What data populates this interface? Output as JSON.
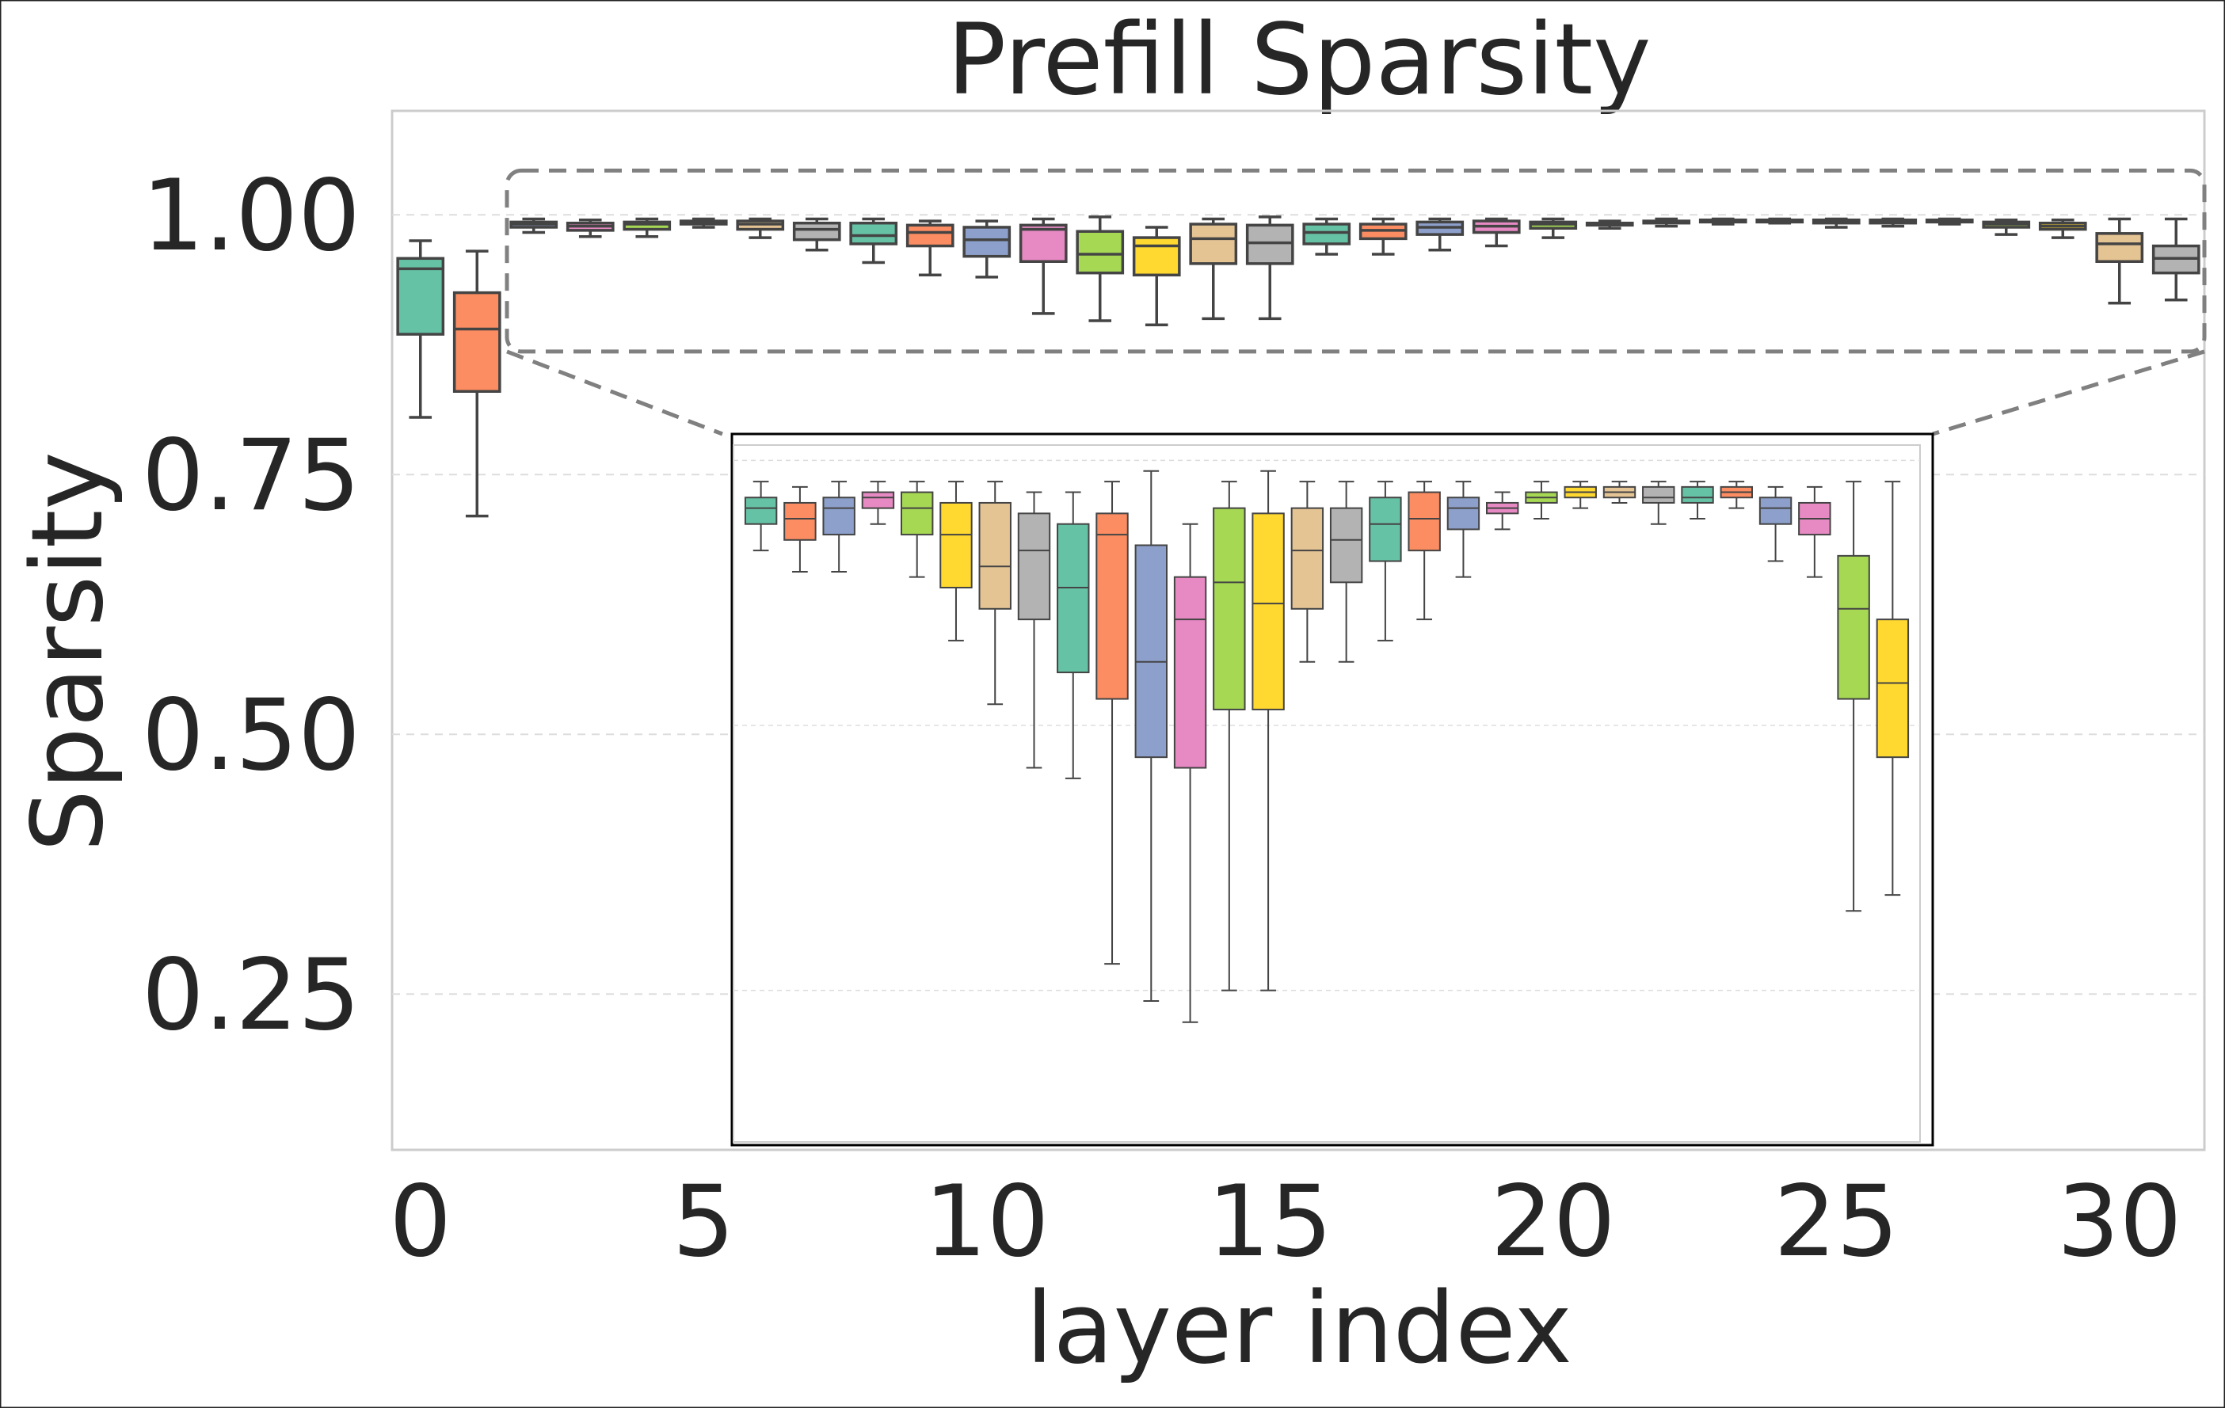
{
  "chart_data": {
    "type": "box",
    "title": "Prefill Sparsity",
    "xlabel": "layer index",
    "ylabel": "Sparsity",
    "xlim": [
      -0.5,
      31.5
    ],
    "ylim": [
      0.1,
      1.1
    ],
    "xticks": [
      0,
      5,
      10,
      15,
      20,
      25,
      30
    ],
    "yticks": [
      0.25,
      0.5,
      0.75,
      1.0
    ],
    "ytick_labels": [
      "0.25",
      "0.50",
      "0.75",
      "1.00"
    ],
    "grid": true,
    "palette": [
      "#66c2a5",
      "#fc8d62",
      "#8da0cb",
      "#e78ac3",
      "#a6d854",
      "#ffd92f",
      "#e5c494",
      "#b3b3b3"
    ],
    "layers": [
      {
        "layer": 0,
        "whislo": 0.805,
        "q1": 0.885,
        "med": 0.948,
        "q3": 0.958,
        "whishi": 0.975
      },
      {
        "layer": 1,
        "whislo": 0.71,
        "q1": 0.83,
        "med": 0.89,
        "q3": 0.925,
        "whishi": 0.965
      },
      {
        "layer": 2,
        "whislo": 0.983,
        "q1": 0.988,
        "med": 0.991,
        "q3": 0.993,
        "whishi": 0.996
      },
      {
        "layer": 3,
        "whislo": 0.979,
        "q1": 0.985,
        "med": 0.989,
        "q3": 0.992,
        "whishi": 0.995
      },
      {
        "layer": 4,
        "whislo": 0.979,
        "q1": 0.986,
        "med": 0.991,
        "q3": 0.993,
        "whishi": 0.996
      },
      {
        "layer": 5,
        "whislo": 0.988,
        "q1": 0.991,
        "med": 0.993,
        "q3": 0.994,
        "whishi": 0.996
      },
      {
        "layer": 6,
        "whislo": 0.978,
        "q1": 0.986,
        "med": 0.991,
        "q3": 0.994,
        "whishi": 0.996
      },
      {
        "layer": 7,
        "whislo": 0.966,
        "q1": 0.976,
        "med": 0.986,
        "q3": 0.992,
        "whishi": 0.996
      },
      {
        "layer": 8,
        "whislo": 0.954,
        "q1": 0.972,
        "med": 0.98,
        "q3": 0.992,
        "whishi": 0.996
      },
      {
        "layer": 9,
        "whislo": 0.942,
        "q1": 0.97,
        "med": 0.983,
        "q3": 0.99,
        "whishi": 0.994
      },
      {
        "layer": 10,
        "whislo": 0.94,
        "q1": 0.96,
        "med": 0.976,
        "q3": 0.988,
        "whishi": 0.994
      },
      {
        "layer": 11,
        "whislo": 0.905,
        "q1": 0.955,
        "med": 0.986,
        "q3": 0.99,
        "whishi": 0.996
      },
      {
        "layer": 12,
        "whislo": 0.898,
        "q1": 0.944,
        "med": 0.962,
        "q3": 0.984,
        "whishi": 0.998
      },
      {
        "layer": 13,
        "whislo": 0.894,
        "q1": 0.942,
        "med": 0.97,
        "q3": 0.978,
        "whishi": 0.988
      },
      {
        "layer": 14,
        "whislo": 0.9,
        "q1": 0.953,
        "med": 0.977,
        "q3": 0.991,
        "whishi": 0.996
      },
      {
        "layer": 15,
        "whislo": 0.9,
        "q1": 0.953,
        "med": 0.973,
        "q3": 0.99,
        "whishi": 0.998
      },
      {
        "layer": 16,
        "whislo": 0.962,
        "q1": 0.972,
        "med": 0.983,
        "q3": 0.991,
        "whishi": 0.996
      },
      {
        "layer": 17,
        "whislo": 0.962,
        "q1": 0.977,
        "med": 0.985,
        "q3": 0.991,
        "whishi": 0.996
      },
      {
        "layer": 18,
        "whislo": 0.966,
        "q1": 0.981,
        "med": 0.988,
        "q3": 0.993,
        "whishi": 0.996
      },
      {
        "layer": 19,
        "whislo": 0.97,
        "q1": 0.983,
        "med": 0.989,
        "q3": 0.994,
        "whishi": 0.996
      },
      {
        "layer": 20,
        "whislo": 0.978,
        "q1": 0.987,
        "med": 0.991,
        "q3": 0.993,
        "whishi": 0.996
      },
      {
        "layer": 21,
        "whislo": 0.987,
        "q1": 0.99,
        "med": 0.991,
        "q3": 0.992,
        "whishi": 0.994
      },
      {
        "layer": 22,
        "whislo": 0.989,
        "q1": 0.992,
        "med": 0.993,
        "q3": 0.994,
        "whishi": 0.996
      },
      {
        "layer": 23,
        "whislo": 0.991,
        "q1": 0.993,
        "med": 0.994,
        "q3": 0.995,
        "whishi": 0.996
      },
      {
        "layer": 24,
        "whislo": 0.992,
        "q1": 0.993,
        "med": 0.994,
        "q3": 0.995,
        "whishi": 0.996
      },
      {
        "layer": 25,
        "whislo": 0.988,
        "q1": 0.992,
        "med": 0.993,
        "q3": 0.995,
        "whishi": 0.996
      },
      {
        "layer": 26,
        "whislo": 0.989,
        "q1": 0.992,
        "med": 0.993,
        "q3": 0.995,
        "whishi": 0.996
      },
      {
        "layer": 27,
        "whislo": 0.991,
        "q1": 0.993,
        "med": 0.994,
        "q3": 0.995,
        "whishi": 0.996
      },
      {
        "layer": 28,
        "whislo": 0.981,
        "q1": 0.988,
        "med": 0.991,
        "q3": 0.993,
        "whishi": 0.995
      },
      {
        "layer": 29,
        "whislo": 0.978,
        "q1": 0.986,
        "med": 0.989,
        "q3": 0.992,
        "whishi": 0.995
      },
      {
        "layer": 30,
        "whislo": 0.915,
        "q1": 0.955,
        "med": 0.972,
        "q3": 0.982,
        "whishi": 0.996
      },
      {
        "layer": 31,
        "whislo": 0.918,
        "q1": 0.944,
        "med": 0.958,
        "q3": 0.97,
        "whishi": 0.996
      }
    ],
    "inset": {
      "zoom_of_layers": [
        2,
        31
      ],
      "ylim": [
        0.8714,
        1.0029
      ]
    }
  }
}
